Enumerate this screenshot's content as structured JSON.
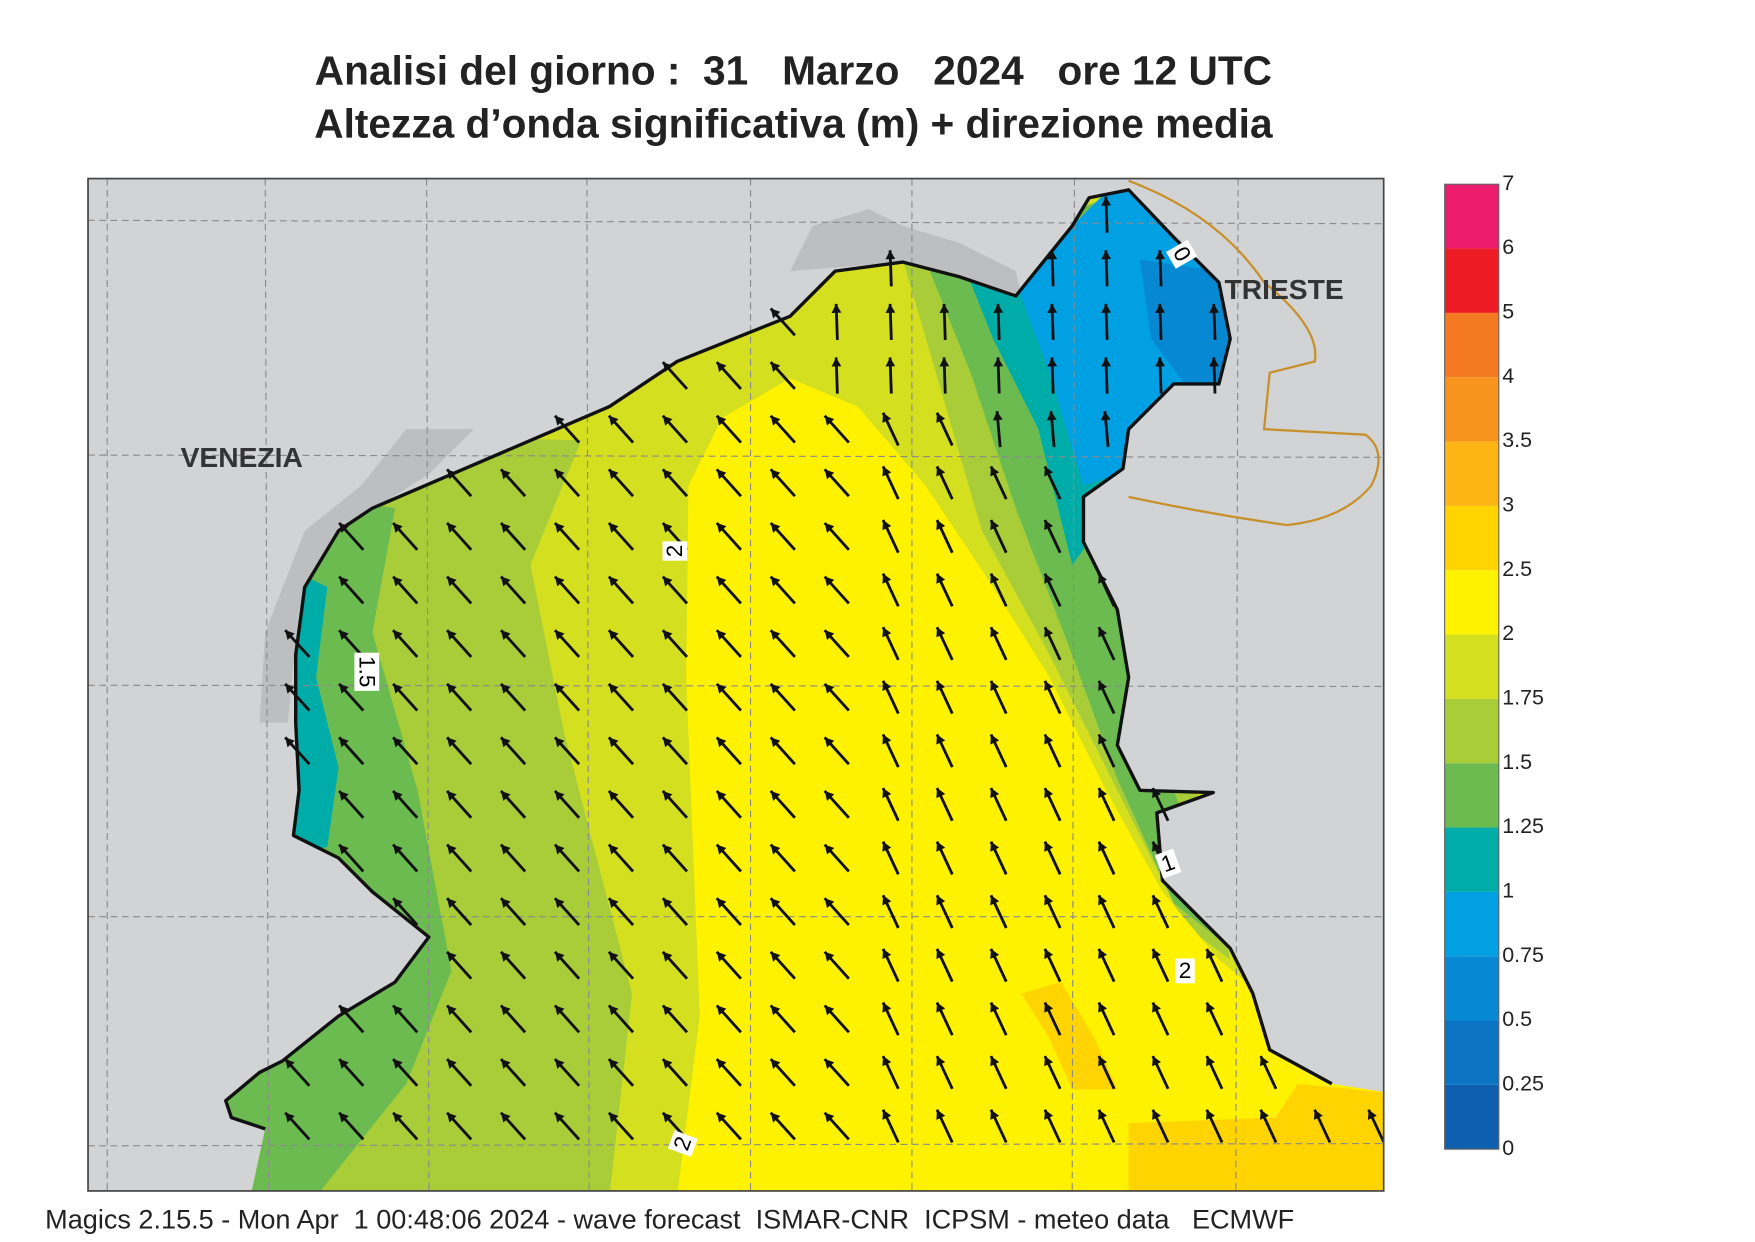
{
  "title": {
    "line1": "Analisi del giorno :  31   Marzo   2024   ore 12 UTC",
    "line2": "Altezza d’onda significativa (m) + direzione media"
  },
  "map": {
    "places": [
      "VENEZIA",
      "TRIESTE"
    ],
    "contour_labels": [
      "2",
      "1.5",
      "1",
      "2",
      "2",
      "0"
    ]
  },
  "legend": {
    "levels": [
      0,
      0.25,
      0.5,
      0.75,
      1,
      1.25,
      1.5,
      1.75,
      2,
      2.5,
      3,
      3.5,
      4,
      5,
      6,
      7
    ],
    "colors": [
      "#0f5fb0",
      "#0a74c2",
      "#0788d2",
      "#00a0e2",
      "#00aca8",
      "#6cbb50",
      "#a8cd38",
      "#d4df20",
      "#fff200",
      "#ffd400",
      "#fdb515",
      "#f7941d",
      "#f47920",
      "#ed1c24",
      "#ec1c6c"
    ]
  },
  "footer": "Magics 2.15.5 - Mon Apr  1 00:48:06 2024 - wave forecast  ISMAR-CNR  ICPSM - meteo data   ECMWF"
}
